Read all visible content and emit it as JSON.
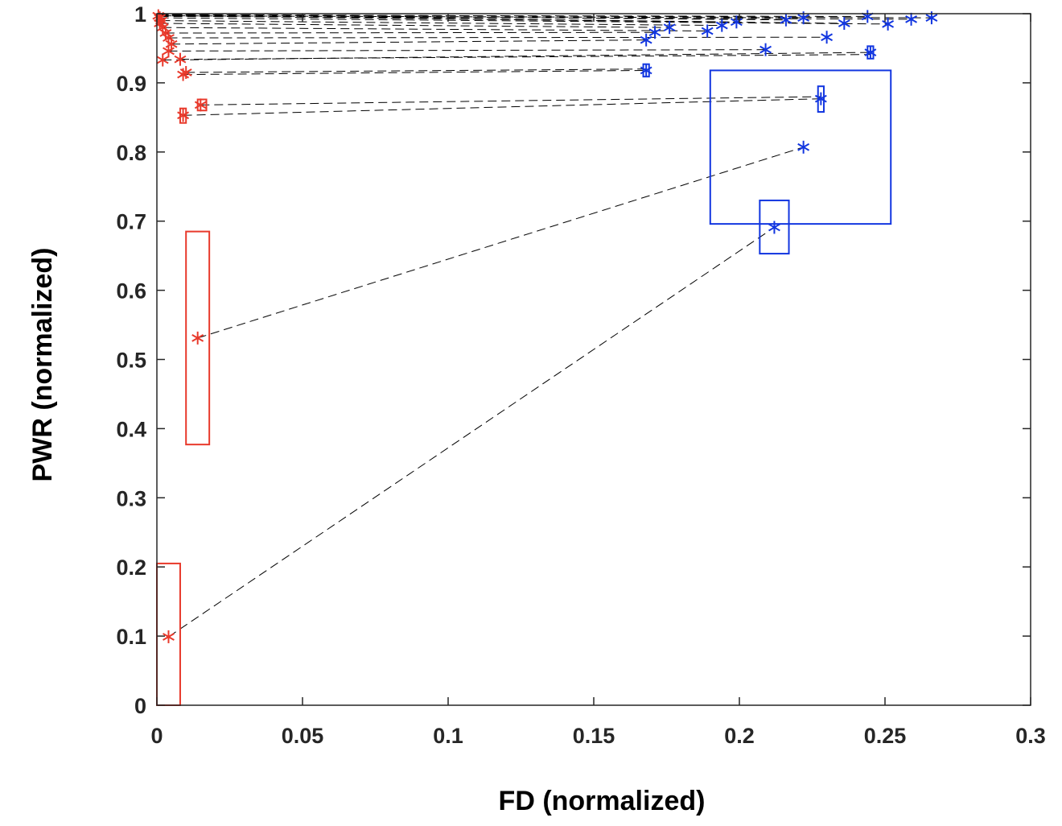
{
  "chart_data": {
    "type": "scatter",
    "xlabel": "FD (normalized)",
    "ylabel": "PWR (normalized)",
    "xlim": [
      0,
      0.3
    ],
    "ylim": [
      0,
      1
    ],
    "x_ticks": [
      "0",
      "0.05",
      "0.1",
      "0.15",
      "0.2",
      "0.25",
      "0.3"
    ],
    "y_ticks": [
      "0",
      "0.1",
      "0.2",
      "0.3",
      "0.4",
      "0.5",
      "0.6",
      "0.7",
      "0.8",
      "0.9",
      "1"
    ],
    "grid": false,
    "legend": "none",
    "colors": {
      "red": "#e8392b",
      "blue": "#1236e0",
      "connector": "#000000",
      "axis": "#262626"
    },
    "series": [
      {
        "marker": "asterisk",
        "color": "red",
        "points": [
          {
            "x": 0.004,
            "y": 0.099
          },
          {
            "x": 0.014,
            "y": 0.531
          },
          {
            "x": 0.009,
            "y": 0.853
          },
          {
            "x": 0.015,
            "y": 0.868
          },
          {
            "x": 0.009,
            "y": 0.912
          },
          {
            "x": 0.01,
            "y": 0.915
          },
          {
            "x": 0.002,
            "y": 0.933
          },
          {
            "x": 0.008,
            "y": 0.934
          },
          {
            "x": 0.004,
            "y": 0.946
          },
          {
            "x": 0.005,
            "y": 0.956
          },
          {
            "x": 0.004,
            "y": 0.965
          },
          {
            "x": 0.003,
            "y": 0.972
          },
          {
            "x": 0.002,
            "y": 0.98
          },
          {
            "x": 0.001,
            "y": 0.986
          },
          {
            "x": 0.0015,
            "y": 0.99
          },
          {
            "x": 0.001,
            "y": 0.994
          },
          {
            "x": 0.0005,
            "y": 0.997
          }
        ]
      },
      {
        "marker": "asterisk",
        "color": "blue",
        "points": [
          {
            "x": 0.212,
            "y": 0.691
          },
          {
            "x": 0.222,
            "y": 0.807
          },
          {
            "x": 0.228,
            "y": 0.877
          },
          {
            "x": 0.168,
            "y": 0.918
          },
          {
            "x": 0.245,
            "y": 0.944
          },
          {
            "x": 0.209,
            "y": 0.948
          },
          {
            "x": 0.168,
            "y": 0.962
          },
          {
            "x": 0.23,
            "y": 0.966
          },
          {
            "x": 0.171,
            "y": 0.973
          },
          {
            "x": 0.189,
            "y": 0.975
          },
          {
            "x": 0.176,
            "y": 0.98
          },
          {
            "x": 0.194,
            "y": 0.983
          },
          {
            "x": 0.251,
            "y": 0.985
          },
          {
            "x": 0.236,
            "y": 0.986
          },
          {
            "x": 0.199,
            "y": 0.988
          },
          {
            "x": 0.216,
            "y": 0.991
          },
          {
            "x": 0.259,
            "y": 0.992
          },
          {
            "x": 0.222,
            "y": 0.994
          },
          {
            "x": 0.266,
            "y": 0.994
          },
          {
            "x": 0.244,
            "y": 0.996
          }
        ]
      }
    ],
    "connections": [
      [
        [
          0.004,
          0.099
        ],
        [
          0.212,
          0.691
        ]
      ],
      [
        [
          0.014,
          0.531
        ],
        [
          0.222,
          0.807
        ]
      ],
      [
        [
          0.009,
          0.853
        ],
        [
          0.228,
          0.877
        ]
      ],
      [
        [
          0.015,
          0.868
        ],
        [
          0.228,
          0.88
        ]
      ],
      [
        [
          0.009,
          0.912
        ],
        [
          0.168,
          0.918
        ]
      ],
      [
        [
          0.01,
          0.915
        ],
        [
          0.168,
          0.92
        ]
      ],
      [
        [
          0.002,
          0.933
        ],
        [
          0.245,
          0.944
        ]
      ],
      [
        [
          0.008,
          0.934
        ],
        [
          0.245,
          0.941
        ]
      ],
      [
        [
          0.004,
          0.946
        ],
        [
          0.209,
          0.948
        ]
      ],
      [
        [
          0.005,
          0.956
        ],
        [
          0.168,
          0.962
        ]
      ],
      [
        [
          0.004,
          0.965
        ],
        [
          0.23,
          0.966
        ]
      ],
      [
        [
          0.003,
          0.972
        ],
        [
          0.171,
          0.973
        ]
      ],
      [
        [
          0.002,
          0.98
        ],
        [
          0.189,
          0.975
        ]
      ],
      [
        [
          0.001,
          0.986
        ],
        [
          0.176,
          0.98
        ]
      ],
      [
        [
          0.0015,
          0.99
        ],
        [
          0.194,
          0.983
        ]
      ],
      [
        [
          0.001,
          0.994
        ],
        [
          0.251,
          0.985
        ]
      ],
      [
        [
          0.0005,
          0.997
        ],
        [
          0.236,
          0.986
        ]
      ],
      [
        [
          0.001,
          0.998
        ],
        [
          0.199,
          0.988
        ]
      ],
      [
        [
          0.0005,
          0.999
        ],
        [
          0.216,
          0.991
        ]
      ],
      [
        [
          0.001,
          0.996
        ],
        [
          0.259,
          0.992
        ]
      ],
      [
        [
          0.002,
          0.997
        ],
        [
          0.222,
          0.994
        ]
      ],
      [
        [
          0.001,
          0.999
        ],
        [
          0.266,
          0.994
        ]
      ],
      [
        [
          0.0005,
          0.998
        ],
        [
          0.244,
          0.996
        ]
      ]
    ],
    "boxes": [
      {
        "color": "red",
        "x_range": [
          0.0,
          0.008
        ],
        "y_range": [
          0.0,
          0.205
        ]
      },
      {
        "color": "red",
        "x_range": [
          0.01,
          0.018
        ],
        "y_range": [
          0.377,
          0.685
        ]
      },
      {
        "color": "red",
        "x_range": [
          0.008,
          0.01
        ],
        "y_range": [
          0.842,
          0.863
        ]
      },
      {
        "color": "red",
        "x_range": [
          0.014,
          0.017
        ],
        "y_range": [
          0.86,
          0.876
        ]
      },
      {
        "color": "blue",
        "x_range": [
          0.19,
          0.252
        ],
        "y_range": [
          0.696,
          0.918
        ]
      },
      {
        "color": "blue",
        "x_range": [
          0.207,
          0.217
        ],
        "y_range": [
          0.653,
          0.73
        ]
      },
      {
        "color": "blue",
        "x_range": [
          0.227,
          0.229
        ],
        "y_range": [
          0.858,
          0.895
        ]
      },
      {
        "color": "blue",
        "x_range": [
          0.167,
          0.169
        ],
        "y_range": [
          0.909,
          0.927
        ]
      },
      {
        "color": "blue",
        "x_range": [
          0.244,
          0.246
        ],
        "y_range": [
          0.935,
          0.953
        ]
      }
    ]
  }
}
